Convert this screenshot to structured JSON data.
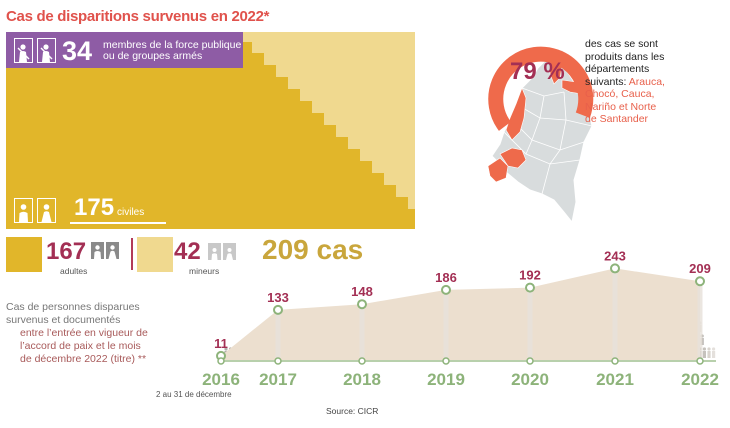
{
  "title": "Cas de disparitions survenus en 2022*",
  "security_forces": {
    "count": "34",
    "label_line1": "membres de la force publique",
    "label_line2": "ou de groupes armés"
  },
  "civilians": {
    "count": "175",
    "label": "civiles"
  },
  "breakdown": {
    "adults": {
      "count": "167",
      "label": "adultes"
    },
    "minors": {
      "count": "42",
      "label": "mineurs"
    },
    "total": "209 cas"
  },
  "departments": {
    "percent": "79 %",
    "text_line1": "des cas se sont",
    "text_line2": "produits dans les",
    "text_line3": "départements",
    "text_line4": "suivants:",
    "list_line1": "Arauca,",
    "list_line2": "Chocó, Cauca,",
    "list_line3": "Nariño et Norte",
    "list_line4": "de Santander",
    "percent_value": 79
  },
  "subtitle": {
    "line1": "Cas de personnes disparues",
    "line2": "survenus et documentés",
    "line3": "entre l’entrée en vigueur de",
    "line4": "l’accord de paix et le mois",
    "line5": "de décembre 2022 (titre) **"
  },
  "note_2016": "2 au 31 de décembre",
  "source": "Source: CICR",
  "colors": {
    "adults": "#e1b62a",
    "minors": "#f0d98f",
    "security": "#8e5ca5",
    "value_labels": "#a32f54",
    "markers": "#8db37a",
    "area": "#ecdfcf",
    "ring": "#ef6a4b"
  },
  "chart_data": {
    "type": "area",
    "x": [
      "2016",
      "2017",
      "2018",
      "2019",
      "2020",
      "2021",
      "2022"
    ],
    "values": [
      11,
      133,
      148,
      186,
      192,
      243,
      209
    ],
    "value_labels": [
      "11",
      "133",
      "148",
      "186",
      "192",
      "243",
      "209"
    ],
    "ylim": [
      0,
      260
    ],
    "grid": false,
    "xlabel": "",
    "ylabel": ""
  }
}
